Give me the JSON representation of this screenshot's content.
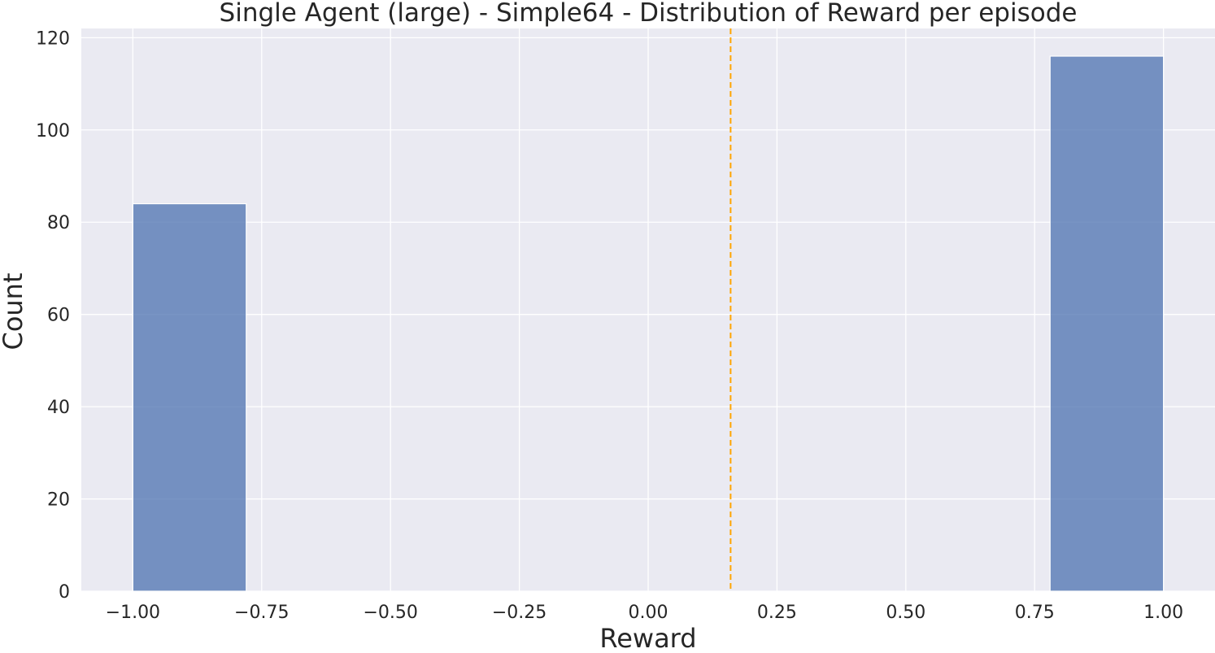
{
  "chart_data": {
    "type": "bar",
    "title": "Single Agent (large) - Simple64 - Distribution of Reward per episode",
    "xlabel": "Reward",
    "ylabel": "Count",
    "xlim": [
      -1.1,
      1.1
    ],
    "ylim": [
      0,
      122
    ],
    "grid": true,
    "xticks": [
      -1.0,
      -0.75,
      -0.5,
      -0.25,
      0.0,
      0.25,
      0.5,
      0.75,
      1.0
    ],
    "xtick_labels": [
      "−1.00",
      "−0.75",
      "−0.50",
      "−0.25",
      "0.00",
      "0.25",
      "0.50",
      "0.75",
      "1.00"
    ],
    "yticks": [
      0,
      20,
      40,
      60,
      80,
      100,
      120
    ],
    "ytick_labels": [
      "0",
      "20",
      "40",
      "60",
      "80",
      "100",
      "120"
    ],
    "bins": [
      {
        "x0": -1.0,
        "x1": -0.78,
        "count": 84
      },
      {
        "x0": 0.78,
        "x1": 1.0,
        "count": 116
      }
    ],
    "mean_line": {
      "x": 0.16,
      "style": "dashed"
    },
    "colors": {
      "bar": "#4c72b0",
      "mean_line": "#ffa500",
      "background": "#eaeaf2",
      "grid": "#ffffff"
    }
  }
}
